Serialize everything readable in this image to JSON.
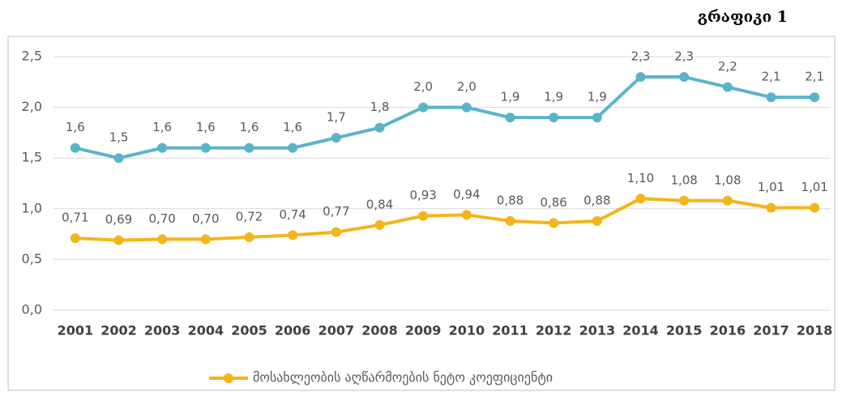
{
  "chart_data": {
    "type": "line",
    "title": "გრაფიკი 1",
    "categories": [
      "2001",
      "2002",
      "2003",
      "2004",
      "2005",
      "2006",
      "2007",
      "2008",
      "2009",
      "2010",
      "2011",
      "2012",
      "2013",
      "2014",
      "2015",
      "2016",
      "2017",
      "2018"
    ],
    "series": [
      {
        "color": "#5ab4c9",
        "values": [
          1.6,
          1.5,
          1.6,
          1.6,
          1.6,
          1.6,
          1.7,
          1.8,
          2.0,
          2.0,
          1.9,
          1.9,
          1.9,
          2.3,
          2.3,
          2.2,
          2.1,
          2.1
        ],
        "value_labels": [
          "1,6",
          "1,5",
          "1,6",
          "1,6",
          "1,6",
          "1,6",
          "1,7",
          "1,8",
          "2,0",
          "2,0",
          "1,9",
          "1,9",
          "1,9",
          "2,3",
          "2,3",
          "2,2",
          "2,1",
          "2,1"
        ]
      },
      {
        "name": "მოსახლეობის აღწარმოების ნეტო კოეფიციენტი",
        "color": "#f4b41a",
        "values": [
          0.71,
          0.69,
          0.7,
          0.7,
          0.72,
          0.74,
          0.77,
          0.84,
          0.93,
          0.94,
          0.88,
          0.86,
          0.88,
          1.1,
          1.08,
          1.08,
          1.01,
          1.01
        ],
        "value_labels": [
          "0,71",
          "0,69",
          "0,70",
          "0,70",
          "0,72",
          "0,74",
          "0,77",
          "0,84",
          "0,93",
          "0,94",
          "0,88",
          "0,86",
          "0,88",
          "1,10",
          "1,08",
          "1,08",
          "1,01",
          "1,01"
        ]
      }
    ],
    "ylim": [
      0,
      2.5
    ],
    "yticks": [
      {
        "value": 0,
        "label": "0,0"
      },
      {
        "value": 0.5,
        "label": "0,5"
      },
      {
        "value": 1,
        "label": "1,0"
      },
      {
        "value": 1.5,
        "label": "1,5"
      },
      {
        "value": 2,
        "label": "2,0"
      },
      {
        "value": 2.5,
        "label": "2,5"
      }
    ],
    "grid": true,
    "legend": "bottom"
  }
}
